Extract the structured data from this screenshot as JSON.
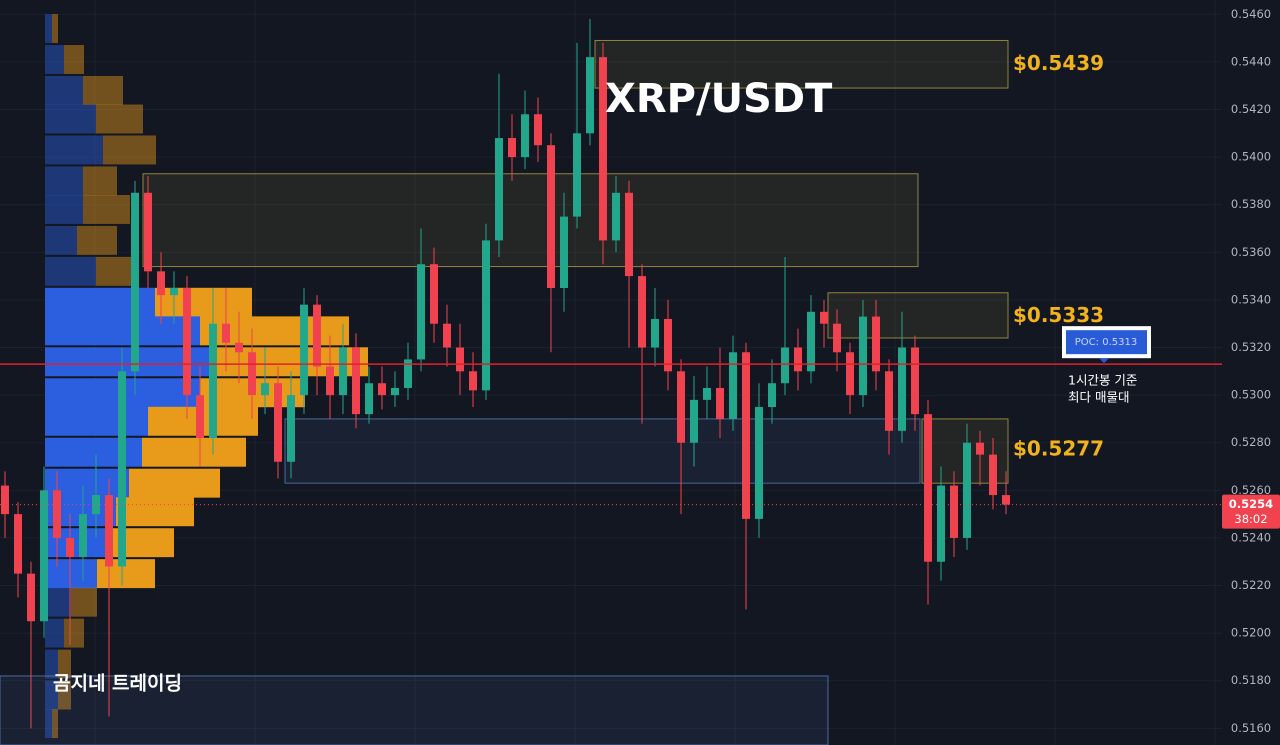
{
  "chart_data": {
    "type": "candlestick",
    "title": "XRP/USDT",
    "ylim": [
      0.5153,
      0.5466
    ],
    "yticks": [
      {
        "value": 0.516,
        "label": "0.5160"
      },
      {
        "value": 0.518,
        "label": "0.5180"
      },
      {
        "value": 0.52,
        "label": "0.5200"
      },
      {
        "value": 0.522,
        "label": "0.5220"
      },
      {
        "value": 0.524,
        "label": "0.5240"
      },
      {
        "value": 0.526,
        "label": "0.5260"
      },
      {
        "value": 0.528,
        "label": "0.5280"
      },
      {
        "value": 0.53,
        "label": "0.5300"
      },
      {
        "value": 0.532,
        "label": "0.5320"
      },
      {
        "value": 0.534,
        "label": "0.5340"
      },
      {
        "value": 0.536,
        "label": "0.5360"
      },
      {
        "value": 0.538,
        "label": "0.5380"
      },
      {
        "value": 0.54,
        "label": "0.5400"
      },
      {
        "value": 0.542,
        "label": "0.5420"
      },
      {
        "value": 0.544,
        "label": "0.5440"
      },
      {
        "value": 0.546,
        "label": "0.5460"
      }
    ],
    "grid": true,
    "up_color": "#22a68c",
    "down_color": "#f0434f",
    "open": [
      0.5262,
      0.525,
      0.5225,
      0.5205,
      0.526,
      0.524,
      0.5232,
      0.525,
      0.5258,
      0.5228,
      0.531,
      0.5385,
      0.5352,
      0.5342,
      0.5345,
      0.53,
      0.5282,
      0.533,
      0.5322,
      0.5318,
      0.53,
      0.5305,
      0.5272,
      0.53,
      0.5338,
      0.5312,
      0.53,
      0.532,
      0.5292,
      0.5305,
      0.53,
      0.5303,
      0.5315,
      0.5355,
      0.533,
      0.532,
      0.531,
      0.5302,
      0.5365,
      0.5408,
      0.54,
      0.5418,
      0.5405,
      0.5345,
      0.5375,
      0.541,
      0.5442,
      0.5365,
      0.5385,
      0.535,
      0.532,
      0.5332,
      0.531,
      0.528,
      0.5298,
      0.5303,
      0.529,
      0.5318,
      0.5248,
      0.5295,
      0.5305,
      0.532,
      0.531,
      0.5335,
      0.533,
      0.5318,
      0.53,
      0.5333,
      0.531,
      0.5285,
      0.532,
      0.5292,
      0.523,
      0.5262,
      0.524,
      0.528,
      0.5275,
      0.5258
    ],
    "high": [
      0.5268,
      0.5255,
      0.523,
      0.527,
      0.5268,
      0.525,
      0.5262,
      0.5275,
      0.5265,
      0.532,
      0.539,
      0.5392,
      0.536,
      0.5352,
      0.535,
      0.5312,
      0.5345,
      0.5345,
      0.5335,
      0.5328,
      0.532,
      0.5312,
      0.531,
      0.5345,
      0.5342,
      0.5325,
      0.533,
      0.5326,
      0.5312,
      0.5312,
      0.531,
      0.5322,
      0.537,
      0.5362,
      0.5338,
      0.533,
      0.5318,
      0.5372,
      0.5435,
      0.5418,
      0.5428,
      0.5425,
      0.541,
      0.5385,
      0.5448,
      0.5458,
      0.5448,
      0.5392,
      0.539,
      0.5355,
      0.5345,
      0.534,
      0.5315,
      0.5308,
      0.5312,
      0.532,
      0.5325,
      0.5322,
      0.5305,
      0.5315,
      0.5358,
      0.5328,
      0.5342,
      0.534,
      0.5336,
      0.5322,
      0.534,
      0.534,
      0.5315,
      0.5335,
      0.5325,
      0.5298,
      0.527,
      0.5268,
      0.5288,
      0.5285,
      0.5282,
      0.5268
    ],
    "low": [
      0.524,
      0.5215,
      0.516,
      0.5198,
      0.5228,
      0.5195,
      0.5222,
      0.524,
      0.5165,
      0.522,
      0.53,
      0.5345,
      0.533,
      0.533,
      0.529,
      0.527,
      0.5275,
      0.531,
      0.5305,
      0.529,
      0.5292,
      0.5265,
      0.5265,
      0.5292,
      0.53,
      0.529,
      0.5292,
      0.5286,
      0.5288,
      0.5294,
      0.5295,
      0.5298,
      0.531,
      0.5322,
      0.5312,
      0.53,
      0.5295,
      0.5298,
      0.5358,
      0.539,
      0.5395,
      0.5398,
      0.5318,
      0.5335,
      0.537,
      0.5405,
      0.5355,
      0.536,
      0.532,
      0.5288,
      0.5312,
      0.5302,
      0.525,
      0.527,
      0.529,
      0.5282,
      0.5285,
      0.521,
      0.524,
      0.5288,
      0.53,
      0.5302,
      0.5305,
      0.532,
      0.531,
      0.5292,
      0.5295,
      0.5302,
      0.5275,
      0.528,
      0.5285,
      0.5212,
      0.5222,
      0.5232,
      0.5235,
      0.5262,
      0.5252,
      0.525
    ],
    "close": [
      0.525,
      0.5225,
      0.5205,
      0.526,
      0.524,
      0.5232,
      0.525,
      0.5258,
      0.5228,
      0.531,
      0.5385,
      0.5352,
      0.5342,
      0.5345,
      0.53,
      0.5282,
      0.533,
      0.5322,
      0.5318,
      0.53,
      0.5305,
      0.5272,
      0.53,
      0.5338,
      0.5312,
      0.53,
      0.532,
      0.5292,
      0.5305,
      0.53,
      0.5303,
      0.5315,
      0.5355,
      0.533,
      0.532,
      0.531,
      0.5302,
      0.5365,
      0.5408,
      0.54,
      0.5418,
      0.5405,
      0.5345,
      0.5375,
      0.541,
      0.5442,
      0.5365,
      0.5385,
      0.535,
      0.532,
      0.5332,
      0.531,
      0.528,
      0.5298,
      0.5303,
      0.529,
      0.5318,
      0.5248,
      0.5295,
      0.5305,
      0.532,
      0.531,
      0.5335,
      0.533,
      0.5318,
      0.53,
      0.5333,
      0.531,
      0.5285,
      0.532,
      0.5292,
      0.523,
      0.5262,
      0.524,
      0.528,
      0.5275,
      0.5258,
      0.5254
    ],
    "volume_profile": {
      "levels": [
        0.5454,
        0.5441,
        0.5428,
        0.5416,
        0.5403,
        0.539,
        0.5378,
        0.5365,
        0.5352,
        0.5339,
        0.5327,
        0.5314,
        0.5301,
        0.5289,
        0.5276,
        0.5263,
        0.5251,
        0.5238,
        0.5225,
        0.5213,
        0.52,
        0.5187,
        0.5174,
        0.5162
      ],
      "buy": [
        7,
        19,
        38,
        51,
        58,
        38,
        38,
        32,
        51,
        110,
        155,
        165,
        155,
        103,
        97,
        84,
        71,
        65,
        52,
        26,
        19,
        13,
        13,
        7
      ],
      "sell": [
        6,
        20,
        40,
        47,
        53,
        34,
        47,
        40,
        40,
        97,
        149,
        158,
        105,
        110,
        104,
        91,
        78,
        64,
        58,
        26,
        20,
        13,
        13,
        6
      ],
      "value_area": [
        0.5225,
        0.5339
      ],
      "buy_color": "#2b5fe0",
      "sell_color": "#e89a1a"
    },
    "zones": [
      {
        "low": 0.5429,
        "high": 0.5449,
        "color": "#b8a848"
      },
      {
        "low": 0.5354,
        "high": 0.5393,
        "color": "#b8a848"
      },
      {
        "low": 0.5324,
        "high": 0.5343,
        "color": "#b8a848"
      },
      {
        "low": 0.5263,
        "high": 0.529,
        "color": "#5b84c4"
      },
      {
        "low": 0.5263,
        "high": 0.529,
        "color": "#b8a848"
      },
      {
        "low": 0.5153,
        "high": 0.5182,
        "color": "#5b84c4"
      }
    ],
    "annotations": [
      {
        "text": "$0.5439",
        "value": 0.5439
      },
      {
        "text": "$0.5333",
        "value": 0.5333
      },
      {
        "text": "$0.5277",
        "value": 0.5277
      }
    ],
    "poc": {
      "label": "POC: 0.5313",
      "value": 0.5313,
      "note": [
        "1시간봉 기준",
        "최다 매물대"
      ]
    },
    "last_price": 0.5254,
    "countdown": "38:02",
    "watermark": "곰지네 트레이딩"
  }
}
